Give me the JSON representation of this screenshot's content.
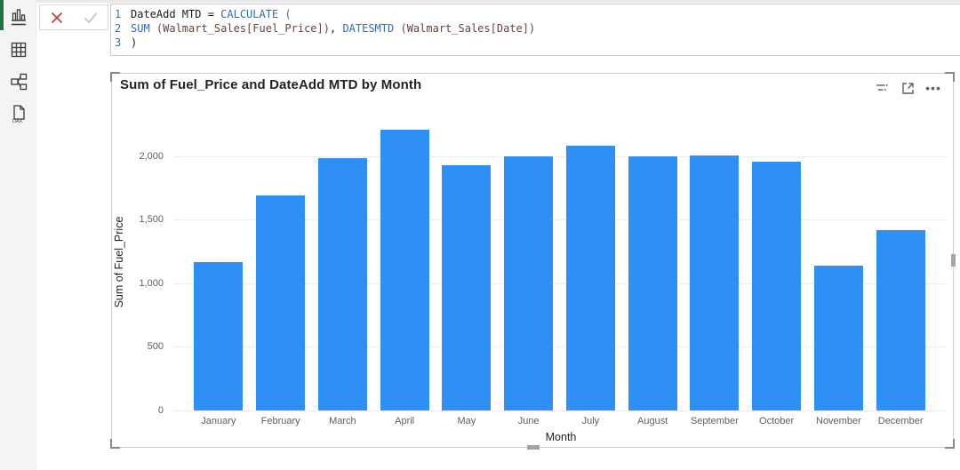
{
  "sidebar": {
    "items": [
      {
        "name": "report-view",
        "label": "Report view",
        "active": true
      },
      {
        "name": "table-view",
        "label": "Table view",
        "active": false
      },
      {
        "name": "model-view",
        "label": "Model view",
        "active": false
      },
      {
        "name": "dax-query-view",
        "label": "DAX query view",
        "active": false
      }
    ],
    "accent_color": "#217346"
  },
  "formula_bar": {
    "cancel_label": "Cancel input",
    "accept_label": "Accept input",
    "syntax_colors": {
      "text": "#1b1b1b",
      "fn": "#2E6BC4",
      "ref": "#6B4339",
      "line_number": "#2E75B6"
    },
    "lines": [
      {
        "num": "1",
        "tokens": [
          {
            "t": "DateAdd MTD = ",
            "c": "text"
          },
          {
            "t": "CALCULATE (",
            "c": "fn"
          }
        ]
      },
      {
        "num": "2",
        "tokens": [
          {
            "t": "SUM ",
            "c": "fn"
          },
          {
            "t": "(Walmart_Sales[Fuel_Price])",
            "c": "ref"
          },
          {
            "t": ", ",
            "c": "text"
          },
          {
            "t": "DATESMTD ",
            "c": "fn"
          },
          {
            "t": "(Walmart_Sales[Date])",
            "c": "ref"
          }
        ]
      },
      {
        "num": "3",
        "tokens": [
          {
            "t": ")",
            "c": "text"
          }
        ]
      }
    ]
  },
  "visual": {
    "title": "Sum of Fuel_Price and DateAdd MTD by Month",
    "toolbar": {
      "filter_tooltip": "Filters",
      "focus_tooltip": "Focus mode",
      "more_tooltip": "More options",
      "more_glyph": "•••"
    }
  },
  "chart_data": {
    "type": "bar",
    "title": "Sum of Fuel_Price and DateAdd MTD by Month",
    "categories": [
      "January",
      "February",
      "March",
      "April",
      "May",
      "June",
      "July",
      "August",
      "September",
      "October",
      "November",
      "December"
    ],
    "values": [
      1165,
      1690,
      1985,
      2205,
      1930,
      2000,
      2080,
      1995,
      2005,
      1955,
      1140,
      1420
    ],
    "xlabel": "Month",
    "ylabel": "Sum of Fuel_Price",
    "ylim": [
      0,
      2240
    ],
    "yticks": [
      0,
      500,
      1000,
      1500,
      2000
    ],
    "bar_color": "#2E8FF5",
    "grid": "horizontal-dotted",
    "legend": "none"
  }
}
